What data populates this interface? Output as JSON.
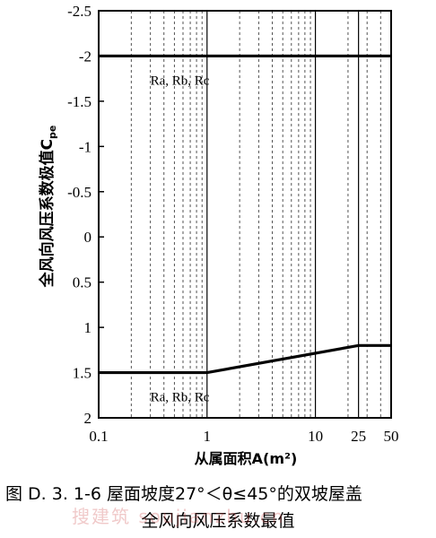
{
  "chart_data": {
    "type": "line",
    "x_scale": "log",
    "xlim": [
      0.1,
      50
    ],
    "ylim": [
      -2.5,
      2
    ],
    "y_inverted": true,
    "xticks": [
      0.1,
      1,
      10,
      25,
      50
    ],
    "xtick_labels": [
      "0.1",
      "1",
      "10",
      "25",
      "50"
    ],
    "yticks": [
      -2.5,
      -2,
      -1.5,
      -1,
      -0.5,
      0,
      0.5,
      1,
      1.5,
      2
    ],
    "ytick_labels": [
      "-2.5",
      "-2",
      "-1.5",
      "-1",
      "-0.5",
      "0",
      "0.5",
      "1",
      "1.5",
      "2"
    ],
    "xlabel": "从属面积A(m²)",
    "ylabel": "全风向风压系数极值C",
    "ylabel_sub": "pe",
    "grid": "vertical dashed minor lines",
    "series": [
      {
        "label": "Ra, Rb, Rc",
        "x": [
          0.1,
          50
        ],
        "y": [
          -2,
          -2
        ]
      },
      {
        "label": "Ra, Rb, Rc",
        "x": [
          0.1,
          1,
          25,
          50
        ],
        "y": [
          1.5,
          1.5,
          1.2,
          1.2
        ]
      }
    ],
    "colors": {
      "line": "#000000",
      "grid": "#555555",
      "axis": "#000000"
    }
  },
  "caption": {
    "line1": "图 D. 3. 1-6    屋面坡度27°＜θ≤45°的双坡屋盖",
    "line2": "全风向风压系数最值"
  },
  "watermark": "搜建筑 soujianzhu.cn"
}
